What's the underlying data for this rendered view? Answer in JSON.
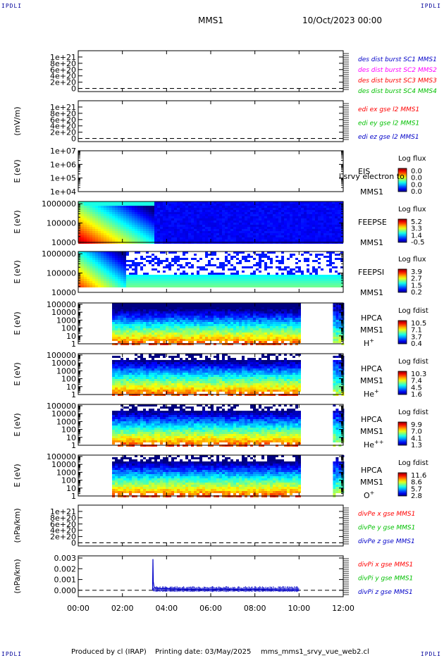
{
  "corner_labels": {
    "top_left": "IPDLI",
    "top_right": "IPDLI",
    "bottom_left": "IPDLI",
    "bottom_right": "IPDLI"
  },
  "header": {
    "mission": "MMS1",
    "datetime": "10/Oct/2023 00:00"
  },
  "footer": {
    "produced_by": "Produced by cl (IRAP)",
    "printing_date": "Printing date: 03/May/2025",
    "script_name": "mms_mms1_srvy_vue_web2.cl"
  },
  "colors": {
    "red": "#ff0000",
    "green": "#00c000",
    "blue": "#0000c8",
    "magenta": "#ff00ff"
  },
  "chart_data": {
    "type": "multi-panel stacked time series / spectrograms",
    "x_axis": {
      "range": [
        "00:00",
        "12:00"
      ],
      "ticks": [
        "00:00",
        "02:00",
        "04:00",
        "06:00",
        "08:00",
        "10:00",
        "12:00"
      ]
    },
    "panels": [
      {
        "id": "p1",
        "type": "line",
        "ylabel": "",
        "ylim": [
          -1e+20,
          1.2e+21
        ],
        "scale": "linear",
        "yticks": [
          "1e+21",
          "8e+20",
          "6e+20",
          "4e+20",
          "2e+20",
          "0"
        ],
        "tick_values": [
          1e+21,
          8e+20,
          6e+20,
          4e+20,
          2e+20,
          0
        ],
        "zero_line": true,
        "legend": [
          {
            "text": "des dist burst SC1 MMS1",
            "color": "#0000c8"
          },
          {
            "text": "des dist burst SC2 MMS2",
            "color": "#ff00ff"
          },
          {
            "text": "des dist burst SC3 MMS3",
            "color": "#ff0000"
          },
          {
            "text": "des dist burst SC4 MMS4",
            "color": "#00c000"
          }
        ]
      },
      {
        "id": "p2",
        "type": "line",
        "ylabel": "(mV/m)",
        "ylim": [
          -1e+20,
          1.2e+21
        ],
        "scale": "linear",
        "yticks": [
          "1e+21",
          "8e+20",
          "6e+20",
          "4e+20",
          "2e+20",
          "0"
        ],
        "tick_values": [
          1e+21,
          8e+20,
          6e+20,
          4e+20,
          2e+20,
          0
        ],
        "zero_line": true,
        "legend": [
          {
            "text": "edi ex gse l2 MMS1",
            "color": "#ff0000"
          },
          {
            "text": "edi ey gse l2 MMS1",
            "color": "#00c000"
          },
          {
            "text": "edi ez gse l2 MMS1",
            "color": "#0000c8"
          }
        ]
      },
      {
        "id": "p3",
        "type": "spectrogram",
        "ylabel": "E (eV)",
        "ylim": [
          10000.0,
          10000000.0
        ],
        "scale": "log",
        "yticks": [
          "1e+07",
          "1e+06",
          "1e+05",
          "1e+04"
        ],
        "tick_values": [
          10000000.0,
          1000000.0,
          100000.0,
          10000.0
        ],
        "labels": [
          "EIS",
          "MMS1"
        ],
        "overlay_text": "l srvy electron to",
        "colorbar": {
          "title": "Log flux",
          "ticks": [
            "0.0",
            "0.0",
            "0.0",
            "0.0"
          ]
        },
        "coverage": []
      },
      {
        "id": "p4",
        "type": "spectrogram",
        "ylabel": "E (eV)",
        "ylim": [
          10000.0,
          1300000.0
        ],
        "scale": "log",
        "yticks": [
          "1000000",
          "100000",
          "10000"
        ],
        "tick_values": [
          1000000.0,
          100000.0,
          10000.0
        ],
        "labels": [
          "FEEPSE",
          "MMS1"
        ],
        "colorbar": {
          "title": "Log flux",
          "ticks": [
            "5.2",
            "3.3",
            "1.4",
            "-0.5"
          ]
        },
        "coverage": [
          [
            "00:00",
            "12:00"
          ]
        ]
      },
      {
        "id": "p5",
        "type": "spectrogram",
        "ylabel": "E (eV)",
        "ylim": [
          10000.0,
          1300000.0
        ],
        "scale": "log",
        "yticks": [
          "1000000",
          "100000",
          "10000"
        ],
        "tick_values": [
          1000000.0,
          100000.0,
          10000.0
        ],
        "labels": [
          "FEEPSI",
          "MMS1"
        ],
        "colorbar": {
          "title": "Log flux",
          "ticks": [
            "3.9",
            "2.7",
            "1.5",
            "0.2"
          ]
        },
        "coverage": [
          [
            "00:00",
            "12:00"
          ]
        ]
      },
      {
        "id": "p6",
        "type": "spectrogram",
        "ylabel": "E (eV)",
        "ylim": [
          1,
          150000.0
        ],
        "scale": "log",
        "yticks": [
          "100000",
          "10000",
          "1000",
          "100",
          "10",
          "1"
        ],
        "tick_values": [
          100000.0,
          10000.0,
          1000.0,
          100.0,
          10.0,
          1
        ],
        "labels": [
          "HPCA",
          "MMS1"
        ],
        "species": "H",
        "species_sup": "+",
        "colorbar": {
          "title": "Log fdist",
          "ticks": [
            "10.5",
            "7.1",
            "3.7",
            "0.4"
          ]
        },
        "coverage": [
          [
            "01:32",
            "10:00"
          ],
          [
            "11:32",
            "12:00"
          ]
        ]
      },
      {
        "id": "p7",
        "type": "spectrogram",
        "ylabel": "E (eV)",
        "ylim": [
          1,
          150000.0
        ],
        "scale": "log",
        "yticks": [
          "100000",
          "10000",
          "1000",
          "100",
          "10",
          "1"
        ],
        "tick_values": [
          100000.0,
          10000.0,
          1000.0,
          100.0,
          10.0,
          1
        ],
        "labels": [
          "HPCA",
          "MMS1"
        ],
        "species": "He",
        "species_sup": "+",
        "colorbar": {
          "title": "Log fdist",
          "ticks": [
            "10.3",
            "7.4",
            "4.5",
            "1.6"
          ]
        },
        "coverage": [
          [
            "01:32",
            "10:00"
          ],
          [
            "11:32",
            "12:00"
          ]
        ]
      },
      {
        "id": "p8",
        "type": "spectrogram",
        "ylabel": "E (eV)",
        "ylim": [
          1,
          150000.0
        ],
        "scale": "log",
        "yticks": [
          "100000",
          "10000",
          "1000",
          "100",
          "10",
          "1"
        ],
        "tick_values": [
          100000.0,
          10000.0,
          1000.0,
          100.0,
          10.0,
          1
        ],
        "labels": [
          "HPCA",
          "MMS1"
        ],
        "species": "He",
        "species_sup": "++",
        "colorbar": {
          "title": "Log fdist",
          "ticks": [
            "9.9",
            "7.0",
            "4.1",
            "1.3"
          ]
        },
        "coverage": [
          [
            "01:32",
            "10:00"
          ],
          [
            "11:32",
            "12:00"
          ]
        ]
      },
      {
        "id": "p9",
        "type": "spectrogram",
        "ylabel": "E (eV)",
        "ylim": [
          1,
          150000.0
        ],
        "scale": "log",
        "yticks": [
          "100000",
          "10000",
          "1000",
          "100",
          "10",
          "1"
        ],
        "tick_values": [
          100000.0,
          10000.0,
          1000.0,
          100.0,
          10.0,
          1
        ],
        "labels": [
          "HPCA",
          "MMS1"
        ],
        "species": "O",
        "species_sup": "+",
        "colorbar": {
          "title": "Log fdist",
          "ticks": [
            "11.6",
            "8.6",
            "5.7",
            "2.8"
          ]
        },
        "coverage": [
          [
            "01:32",
            "10:00"
          ],
          [
            "11:32",
            "12:00"
          ]
        ]
      },
      {
        "id": "p10",
        "type": "line",
        "ylabel": "(nPa/km)",
        "ylim": [
          -1e+20,
          1.2e+21
        ],
        "scale": "linear",
        "yticks": [
          "1e+21",
          "8e+20",
          "6e+20",
          "4e+20",
          "2e+20",
          "0"
        ],
        "tick_values": [
          1e+21,
          8e+20,
          6e+20,
          4e+20,
          2e+20,
          0
        ],
        "zero_line": true,
        "legend": [
          {
            "text": "divPe x gse MMS1",
            "color": "#ff0000"
          },
          {
            "text": "divPe y gse MMS1",
            "color": "#00c000"
          },
          {
            "text": "divPe z gse MMS1",
            "color": "#0000c8"
          }
        ]
      },
      {
        "id": "p11",
        "type": "line",
        "ylabel": "(nPa/km)",
        "ylim": [
          -0.0006,
          0.0032
        ],
        "scale": "linear",
        "yticks": [
          "0.003",
          "0.002",
          "0.001",
          "0.000"
        ],
        "tick_values": [
          0.003,
          0.002,
          0.001,
          0.0
        ],
        "zero_line": true,
        "legend": [
          {
            "text": "divPi x gse MMS1",
            "color": "#ff0000"
          },
          {
            "text": "divPi y gse MMS1",
            "color": "#00c000"
          },
          {
            "text": "divPi z gse MMS1",
            "color": "#0000c8"
          }
        ],
        "series": [
          {
            "name": "divPi z gse MMS1",
            "color": "#0000c8",
            "x": [
              "03:22",
              "03:23",
              "03:24",
              "03:26",
              "03:30",
              "04:00",
              "04:30",
              "05:00",
              "06:00",
              "06:30",
              "07:00",
              "07:30",
              "08:00",
              "09:00",
              "10:00"
            ],
            "y": [
              0.0,
              0.0029,
              0.0008,
              0.0003,
              0.0002,
              0.00015,
              0.0001,
              8e-05,
              5e-05,
              0.00012,
              8e-05,
              5e-05,
              0.0001,
              3e-05,
              2e-05
            ]
          }
        ]
      }
    ]
  }
}
